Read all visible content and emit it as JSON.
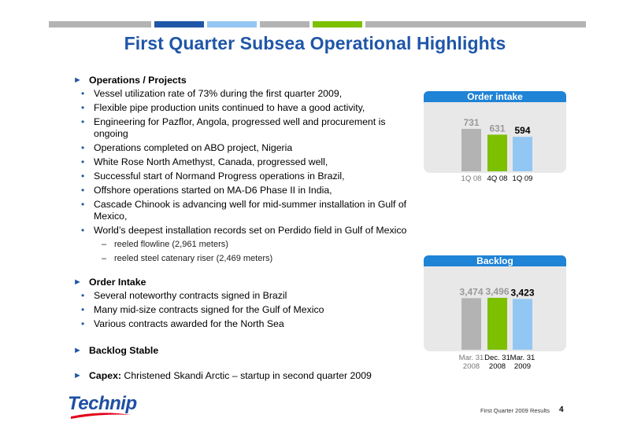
{
  "slide": {
    "title": "First Quarter Subsea Operational Highlights",
    "top_bar_colors": [
      "#b3b3b3",
      "#1f56a8",
      "#93c7f3",
      "#b3b3b3",
      "#7cc000",
      "#b3b3b3"
    ]
  },
  "sections": [
    {
      "heading": "Operations / Projects",
      "bullets": [
        {
          "text": "Vessel utilization rate of 73% during the first quarter 2009,"
        },
        {
          "text": "Flexible pipe production units continued to have a good activity,"
        },
        {
          "text": "Engineering for Pazflor, Angola, progressed well and procurement is ongoing"
        },
        {
          "text": "Operations completed on ABO project, Nigeria"
        },
        {
          "text": "White Rose North Amethyst, Canada, progressed well,"
        },
        {
          "text": "Successful start of Normand Progress operations in Brazil,"
        },
        {
          "text": "Offshore operations started on MA-D6 Phase II in India,"
        },
        {
          "text": "Cascade Chinook is advancing well for mid-summer installation in Gulf of Mexico,"
        },
        {
          "text": "World’s deepest installation records set on Perdido field in Gulf of Mexico",
          "subs": [
            "reeled flowline (2,961 meters)",
            "reeled steel catenary riser (2,469 meters)"
          ]
        }
      ]
    },
    {
      "heading": "Order Intake",
      "bullets": [
        {
          "text": "Several noteworthy contracts signed in Brazil"
        },
        {
          "text": "Many mid-size contracts signed for the Gulf of Mexico"
        },
        {
          "text": "Various contracts awarded for the North Sea"
        }
      ]
    },
    {
      "heading": "Backlog Stable",
      "bullets": []
    },
    {
      "heading": "Capex:",
      "heading_rest": " Christened Skandi Arctic – startup in second quarter 2009",
      "bullets": []
    }
  ],
  "chart_data": [
    {
      "type": "bar",
      "title": "Order intake",
      "categories": [
        "1Q 08",
        "4Q 08",
        "1Q 09"
      ],
      "values": [
        731,
        631,
        594
      ],
      "value_labels": [
        "731",
        "631",
        "594"
      ],
      "colors": [
        "#b3b3b3",
        "#7cc000",
        "#93c7f3"
      ],
      "label_colors": [
        "#999999",
        "#999999",
        "#000000"
      ],
      "category_colors": [
        "#777777",
        "#000000",
        "#000000"
      ]
    },
    {
      "type": "bar",
      "title": "Backlog",
      "categories": [
        "Mar. 31 2008",
        "Dec. 31 2008",
        "Mar. 31 2009"
      ],
      "category_lines": [
        [
          "Mar. 31",
          "2008"
        ],
        [
          "Dec. 31",
          "2008"
        ],
        [
          "Mar. 31",
          "2009"
        ]
      ],
      "values": [
        3474,
        3496,
        3423
      ],
      "value_labels": [
        "3,474",
        "3,496",
        "3,423"
      ],
      "colors": [
        "#b3b3b3",
        "#7cc000",
        "#93c7f3"
      ],
      "label_colors": [
        "#999999",
        "#999999",
        "#000000"
      ],
      "category_colors": [
        "#777777",
        "#000000",
        "#000000"
      ]
    }
  ],
  "logo": {
    "text": "Technip"
  },
  "footer": {
    "text": "First Quarter 2009 Results",
    "page": "4"
  }
}
